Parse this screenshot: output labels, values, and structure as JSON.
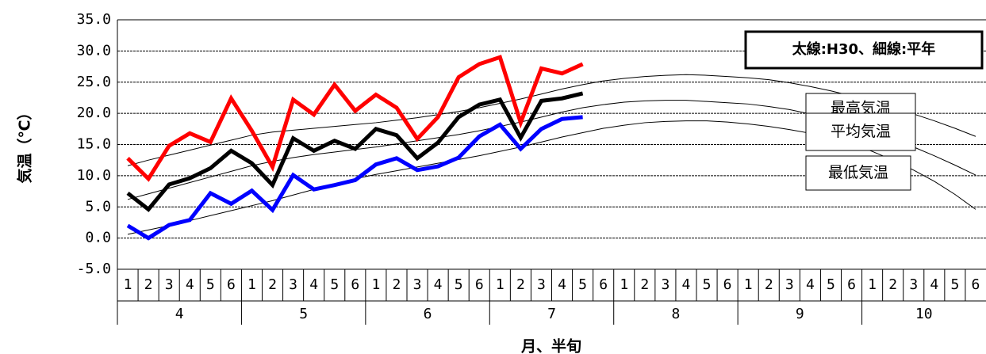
{
  "chart_data": {
    "type": "line",
    "legend_note": "太線:H30、細線:平年",
    "ylabel": "気温（℃）",
    "xlabel": "月、半旬",
    "categories": [
      "1",
      "2",
      "3",
      "4",
      "5",
      "6",
      "1",
      "2",
      "3",
      "4",
      "5",
      "6",
      "1",
      "2",
      "3",
      "4",
      "5",
      "6",
      "1",
      "2",
      "3",
      "4",
      "5",
      "6",
      "1",
      "2",
      "3",
      "4",
      "5",
      "6",
      "1",
      "2",
      "3",
      "4",
      "5",
      "6",
      "1",
      "2",
      "3",
      "4",
      "5",
      "6"
    ],
    "months": [
      "4",
      "5",
      "6",
      "7",
      "8",
      "9",
      "10"
    ],
    "ylim": [
      -5,
      35
    ],
    "yticks": [
      {
        "value": -5,
        "label": "-5.0"
      },
      {
        "value": 0,
        "label": "0.0"
      },
      {
        "value": 5,
        "label": "5.0"
      },
      {
        "value": 10,
        "label": "10.0"
      },
      {
        "value": 15,
        "label": "15.0"
      },
      {
        "value": 20,
        "label": "20.0"
      },
      {
        "value": 25,
        "label": "25.0"
      },
      {
        "value": 30,
        "label": "30.0"
      },
      {
        "value": 35,
        "label": "35.0"
      }
    ],
    "grid": true,
    "series": [
      {
        "name": "最高気温",
        "color": "#000000",
        "line_width": 1,
        "values": [
          11.6,
          12.5,
          13.3,
          14.1,
          14.9,
          15.7,
          16.5,
          17.0,
          17.3,
          17.6,
          17.9,
          18.2,
          18.5,
          18.9,
          19.3,
          19.8,
          20.3,
          20.9,
          21.6,
          22.3,
          23.1,
          23.9,
          24.6,
          25.2,
          25.6,
          25.9,
          26.1,
          26.2,
          26.1,
          25.9,
          25.7,
          25.4,
          24.9,
          24.3,
          23.6,
          22.8,
          21.9,
          21.0,
          19.9,
          18.8,
          17.6,
          16.3
        ]
      },
      {
        "name": "平均気温",
        "color": "#000000",
        "line_width": 1,
        "values": [
          6.2,
          7.1,
          8.0,
          8.9,
          9.8,
          10.7,
          11.6,
          12.3,
          12.9,
          13.4,
          13.8,
          14.2,
          14.6,
          15.1,
          15.6,
          16.1,
          16.6,
          17.2,
          17.9,
          18.6,
          19.4,
          20.2,
          20.9,
          21.4,
          21.8,
          22.0,
          22.1,
          22.1,
          21.9,
          21.7,
          21.5,
          21.1,
          20.6,
          19.9,
          19.1,
          18.2,
          17.1,
          15.9,
          14.6,
          13.2,
          11.7,
          10.1
        ]
      },
      {
        "name": "最低気温",
        "color": "#000000",
        "line_width": 1,
        "values": [
          0.6,
          1.3,
          2.0,
          2.8,
          3.6,
          4.4,
          5.2,
          6.0,
          6.9,
          7.8,
          8.7,
          9.5,
          10.2,
          10.8,
          11.4,
          12.0,
          12.6,
          13.2,
          13.9,
          14.6,
          15.4,
          16.2,
          16.9,
          17.6,
          18.1,
          18.5,
          18.7,
          18.8,
          18.8,
          18.6,
          18.3,
          17.9,
          17.4,
          16.8,
          16.0,
          15.1,
          13.9,
          12.5,
          10.9,
          9.1,
          7.0,
          4.6
        ]
      },
      {
        "color": "#ff0000",
        "line_width": 5,
        "values": [
          12.8,
          9.5,
          14.8,
          16.8,
          15.4,
          22.4,
          17.2,
          11.4,
          22.2,
          19.8,
          24.6,
          20.4,
          23.0,
          20.9,
          15.9,
          19.4,
          25.8,
          27.9,
          29.0,
          18.5,
          27.2,
          26.4,
          27.9,
          null,
          null,
          null,
          null,
          null,
          null,
          null,
          null,
          null,
          null,
          null,
          null,
          null,
          null,
          null,
          null,
          null,
          null,
          null
        ]
      },
      {
        "color": "#000000",
        "line_width": 5,
        "values": [
          7.2,
          4.6,
          8.6,
          9.6,
          11.2,
          14.0,
          12.0,
          8.5,
          16.0,
          14.0,
          15.6,
          14.3,
          17.5,
          16.5,
          12.8,
          15.3,
          19.4,
          21.4,
          22.2,
          16.1,
          22.0,
          22.4,
          23.2,
          null,
          null,
          null,
          null,
          null,
          null,
          null,
          null,
          null,
          null,
          null,
          null,
          null,
          null,
          null,
          null,
          null,
          null,
          null
        ]
      },
      {
        "color": "#0000ff",
        "line_width": 5,
        "values": [
          2.0,
          0.0,
          2.1,
          2.9,
          7.2,
          5.5,
          7.6,
          4.5,
          10.1,
          7.8,
          8.5,
          9.3,
          11.8,
          12.8,
          10.9,
          11.5,
          12.9,
          16.3,
          18.2,
          14.3,
          17.5,
          19.1,
          19.4,
          null,
          null,
          null,
          null,
          null,
          null,
          null,
          null,
          null,
          null,
          null,
          null,
          null,
          null,
          null,
          null,
          null,
          null,
          null
        ]
      }
    ]
  }
}
